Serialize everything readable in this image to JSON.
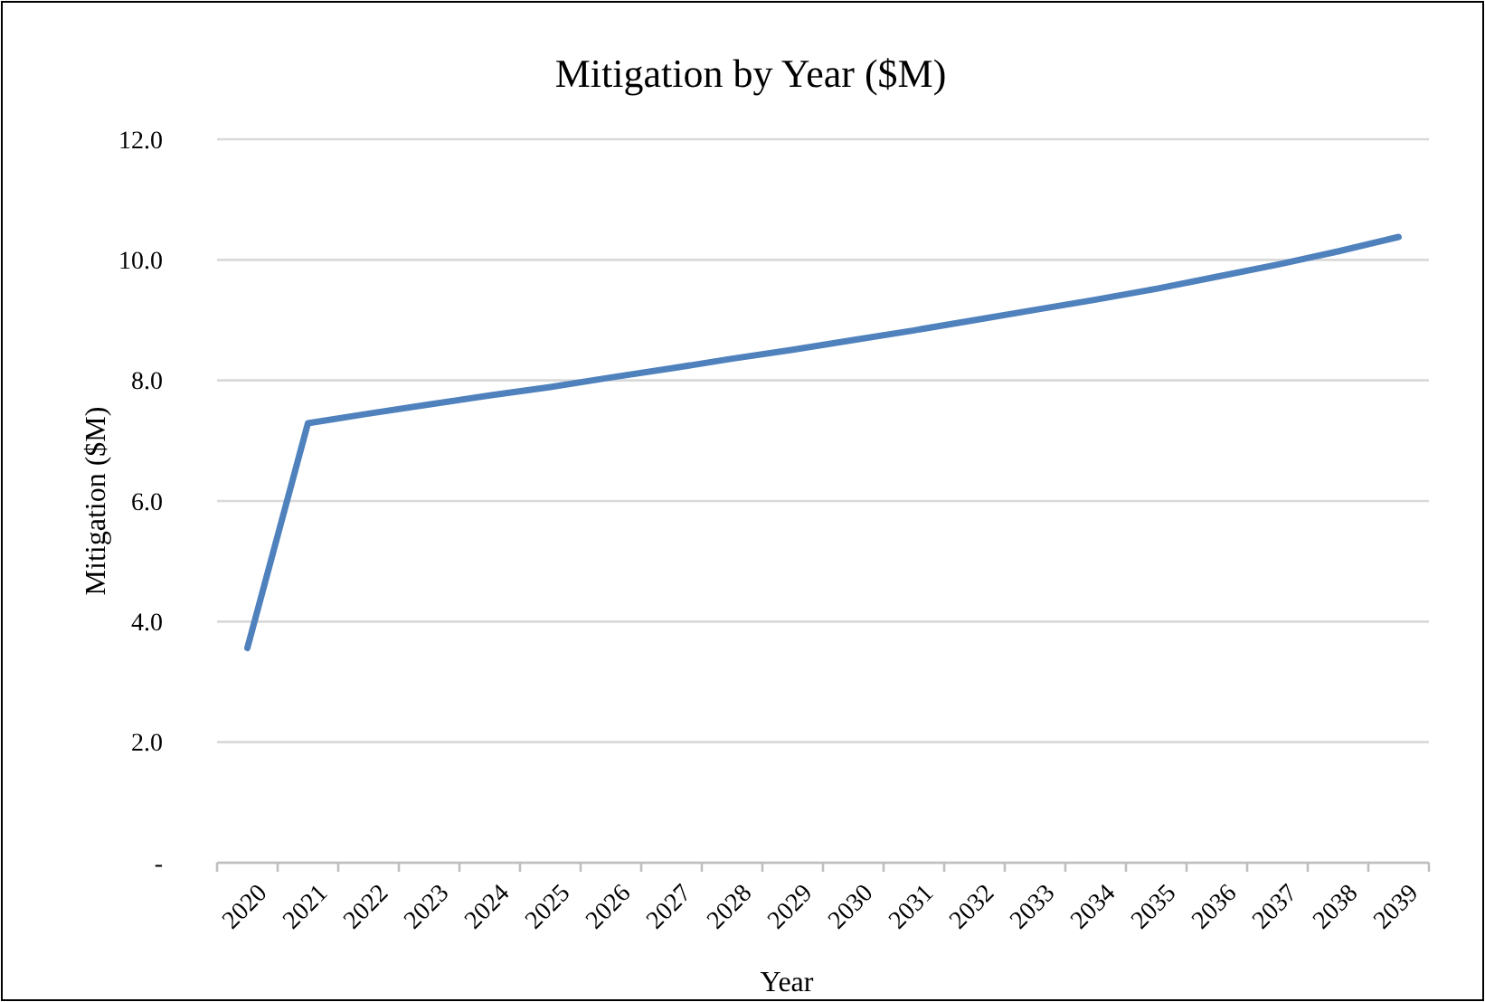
{
  "chart_data": {
    "type": "line",
    "title": "Mitigation by Year ($M)",
    "xlabel": "Year",
    "ylabel": "Mitigation ($M)",
    "categories": [
      "2020",
      "2021",
      "2022",
      "2023",
      "2024",
      "2025",
      "2026",
      "2027",
      "2028",
      "2029",
      "2030",
      "2031",
      "2032",
      "2033",
      "2034",
      "2035",
      "2036",
      "2037",
      "2038",
      "2039"
    ],
    "series": [
      {
        "color": "#4f81bd",
        "values": [
          3.56,
          7.29,
          7.45,
          7.6,
          7.75,
          7.89,
          8.05,
          8.2,
          8.36,
          8.51,
          8.67,
          8.83,
          9.0,
          9.17,
          9.34,
          9.52,
          9.72,
          9.92,
          10.14,
          10.38
        ]
      }
    ],
    "ylim": [
      0,
      12
    ],
    "yticks": [
      {
        "value": 0,
        "label": "-"
      },
      {
        "value": 2,
        "label": "2.0"
      },
      {
        "value": 4,
        "label": "4.0"
      },
      {
        "value": 6,
        "label": "6.0"
      },
      {
        "value": 8,
        "label": "8.0"
      },
      {
        "value": 10,
        "label": "10.0"
      },
      {
        "value": 12,
        "label": "12.0"
      }
    ],
    "grid": "y",
    "marker": "none",
    "line_style": "solid"
  }
}
